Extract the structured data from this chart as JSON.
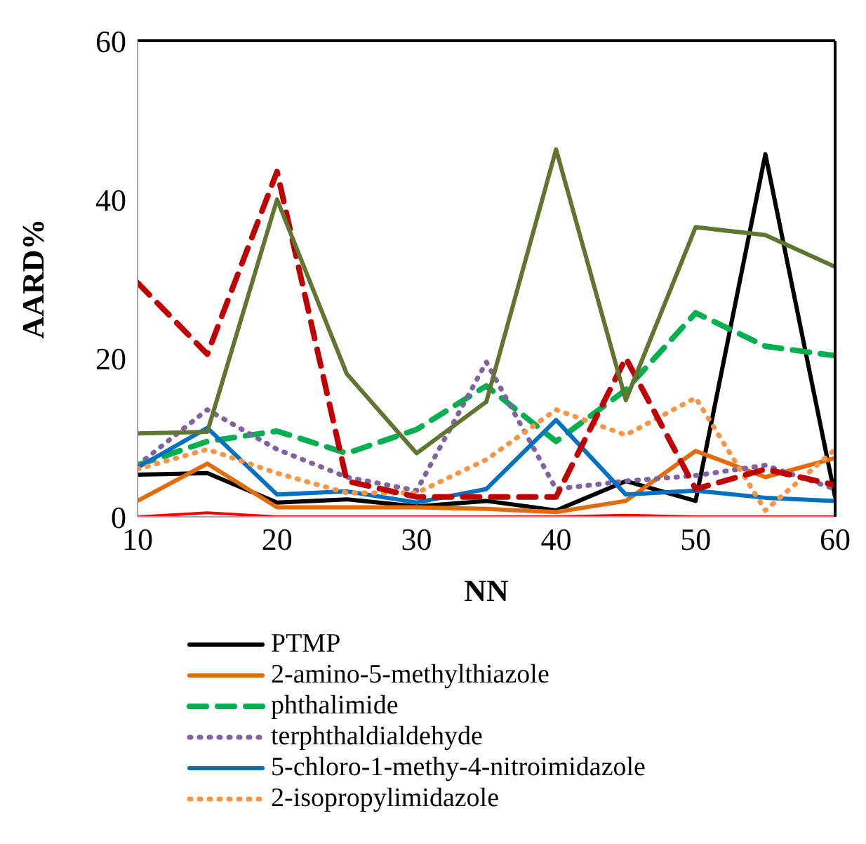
{
  "chart_data": {
    "type": "line",
    "xlabel": "NN",
    "ylabel": "AARD%",
    "x": [
      10,
      15,
      20,
      25,
      30,
      35,
      40,
      45,
      50,
      55,
      60
    ],
    "xlim": [
      10,
      60
    ],
    "xticks": [
      10,
      20,
      30,
      40,
      50,
      60
    ],
    "ylim": [
      0,
      60
    ],
    "yticks": [
      0,
      20,
      40,
      60
    ],
    "legend": "bottom",
    "marker": "none",
    "series": [
      {
        "name": "PTMP",
        "color": "#000000",
        "line_style": "solid",
        "values": [
          5.3,
          5.5,
          1.8,
          2.2,
          1.3,
          2.0,
          0.8,
          4.5,
          2.0,
          45.7,
          2.5
        ]
      },
      {
        "name": "2-amino-5-methylthiazole",
        "color": "#e36c0a",
        "line_style": "solid",
        "values": [
          2,
          6.7,
          1.2,
          1.2,
          1.2,
          1.0,
          0.6,
          2.0,
          8.3,
          5.0,
          7.4
        ]
      },
      {
        "name": "phthalimide",
        "color": "#00b050",
        "line_style": "dashed",
        "values": [
          6.5,
          9.5,
          10.8,
          8.0,
          11,
          16.5,
          9.5,
          16,
          25.7,
          21.5,
          20.3
        ]
      },
      {
        "name": "terphthaldialdehyde",
        "color": "#8064a2",
        "line_style": "dotted",
        "values": [
          6.5,
          13.5,
          8.5,
          5,
          3.3,
          19.5,
          3.5,
          4.5,
          5.2,
          6.5,
          3.5
        ]
      },
      {
        "name": "5-chloro-1-methy-4-nitroimidazole",
        "color": "#0070c0",
        "line_style": "solid",
        "values": [
          6.2,
          11.2,
          2.8,
          3.2,
          1.8,
          3.5,
          12.2,
          2.8,
          3.3,
          2.4,
          2.0
        ]
      },
      {
        "name": "2-isopropylimidazole",
        "color": "#f79646",
        "line_style": "dotted",
        "values": [
          6,
          8.5,
          5.5,
          3,
          3,
          7.2,
          13.5,
          10.3,
          15,
          0.8,
          8.5
        ]
      },
      {
        "color": "#c00000",
        "line_style": "dashed",
        "values": [
          29.5,
          20.5,
          43.5,
          4.5,
          2.5,
          2.5,
          2.5,
          20,
          3.5,
          6,
          4
        ]
      },
      {
        "color": "#5f7530",
        "line_style": "solid",
        "values": [
          10.5,
          10.7,
          40,
          18,
          8,
          14.5,
          46.3,
          14.7,
          36.5,
          35.5,
          31.5
        ]
      },
      {
        "color": "#ff0000",
        "line_style": "solid",
        "values": [
          0,
          0.5,
          0,
          0,
          0,
          0,
          0,
          0.2,
          0,
          0,
          0
        ]
      }
    ]
  }
}
